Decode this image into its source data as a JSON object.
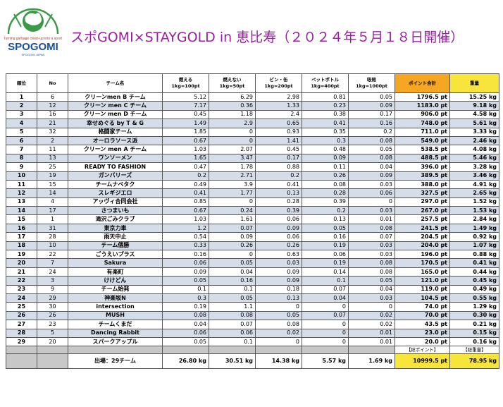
{
  "logo": {
    "tagline": "Turning garbage clean-up into a sport!",
    "wordmark": "SPOGOMI",
    "subtext": "SPOGOMI JAPAN"
  },
  "title": "スポGOMI×STAYGOLD in 恵比寿（２０２４年５月１８日開催）",
  "table": {
    "headers": {
      "rank": "順位",
      "no": "No",
      "team": "チーム名",
      "burnable": "燃える\n1kg=100pt",
      "nonburnable": "燃えない\n1kg=50pt",
      "cans": "ビン・缶\n1kg=200pt",
      "pet": "ペットボトル\n1kg=400pt",
      "cigs": "吸殻\n1kg=1000pt",
      "points": "ポイント合計",
      "weight": "重量"
    },
    "rows": [
      {
        "rank": "1",
        "no": "6",
        "team": "クリーンmen B チーム",
        "burnable": "5.12",
        "nonburnable": "6.29",
        "cans": "2.98",
        "pet": "0.81",
        "cigs": "0.05",
        "points": "1796.5 pt",
        "weight": "15.25 kg"
      },
      {
        "rank": "2",
        "no": "12",
        "team": "クリーン men C チーム",
        "burnable": "7.17",
        "nonburnable": "0.36",
        "cans": "1.33",
        "pet": "0.23",
        "cigs": "0.09",
        "points": "1183.0 pt",
        "weight": "9.18 kg"
      },
      {
        "rank": "3",
        "no": "16",
        "team": "クリーン men D チーム",
        "burnable": "0.45",
        "nonburnable": "1.18",
        "cans": "2.4",
        "pet": "0.38",
        "cigs": "0.17",
        "points": "906.0 pt",
        "weight": "4.58 kg"
      },
      {
        "rank": "4",
        "no": "21",
        "team": "幸せめぐる by T & G",
        "burnable": "1.49",
        "nonburnable": "2.9",
        "cans": "0.65",
        "pet": "0.41",
        "cigs": "0.16",
        "points": "748.0 pt",
        "weight": "5.61 kg"
      },
      {
        "rank": "5",
        "no": "32",
        "team": "格闘家チーム",
        "burnable": "1.85",
        "nonburnable": "0",
        "cans": "0.93",
        "pet": "0.35",
        "cigs": "0.2",
        "points": "711.0 pt",
        "weight": "3.33 kg"
      },
      {
        "rank": "6",
        "no": "2",
        "team": "オーロラソース派",
        "burnable": "0.67",
        "nonburnable": "0",
        "cans": "1.41",
        "pet": "0.3",
        "cigs": "0.08",
        "points": "549.0 pt",
        "weight": "2.46 kg"
      },
      {
        "rank": "7",
        "no": "11",
        "team": "クリーン men A チーム",
        "burnable": "1.03",
        "nonburnable": "2.07",
        "cans": "0.45",
        "pet": "0.48",
        "cigs": "0.05",
        "points": "538.5 pt",
        "weight": "4.08 kg"
      },
      {
        "rank": "8",
        "no": "13",
        "team": "ワンソーメン",
        "burnable": "1.65",
        "nonburnable": "3.47",
        "cans": "0.17",
        "pet": "0.09",
        "cigs": "0.08",
        "points": "488.5 pt",
        "weight": "5.46 kg"
      },
      {
        "rank": "9",
        "no": "25",
        "team": "READY TO FASHION",
        "burnable": "0.47",
        "nonburnable": "1.78",
        "cans": "0.88",
        "pet": "0.11",
        "cigs": "0.04",
        "points": "396.0 pt",
        "weight": "3.28 kg"
      },
      {
        "rank": "10",
        "no": "19",
        "team": "ガンバリーズ",
        "burnable": "0.2",
        "nonburnable": "2.71",
        "cans": "0.2",
        "pet": "0.26",
        "cigs": "0.09",
        "points": "389.5 pt",
        "weight": "3.46 kg"
      },
      {
        "rank": "11",
        "no": "15",
        "team": "チームナベタク",
        "burnable": "0.49",
        "nonburnable": "3.9",
        "cans": "0.41",
        "pet": "0.08",
        "cigs": "0.03",
        "points": "388.0 pt",
        "weight": "4.91 kg"
      },
      {
        "rank": "12",
        "no": "14",
        "team": "スレギジエロ",
        "burnable": "0.41",
        "nonburnable": "1.77",
        "cans": "0.13",
        "pet": "0.28",
        "cigs": "0.06",
        "points": "327.5 pt",
        "weight": "2.65 kg"
      },
      {
        "rank": "13",
        "no": "4",
        "team": "アッヴィ合同会社",
        "burnable": "0.85",
        "nonburnable": "0",
        "cans": "0.28",
        "pet": "0.39",
        "cigs": "0",
        "points": "297.0 pt",
        "weight": "1.52 kg"
      },
      {
        "rank": "14",
        "no": "17",
        "team": "さつまいも",
        "burnable": "0.67",
        "nonburnable": "0.24",
        "cans": "0.39",
        "pet": "0.2",
        "cigs": "0.03",
        "points": "267.0 pt",
        "weight": "1.53 kg"
      },
      {
        "rank": "15",
        "no": "1",
        "team": "滝沢ごみクラブ",
        "burnable": "1.03",
        "nonburnable": "1.61",
        "cans": "0.06",
        "pet": "0.13",
        "cigs": "0.01",
        "points": "257.5 pt",
        "weight": "2.84 kg"
      },
      {
        "rank": "16",
        "no": "31",
        "team": "東京力車",
        "burnable": "1.2",
        "nonburnable": "0.07",
        "cans": "0.09",
        "pet": "0.05",
        "cigs": "0.08",
        "points": "241.5 pt",
        "weight": "1.49 kg"
      },
      {
        "rank": "17",
        "no": "28",
        "team": "雨天中止",
        "burnable": "0.54",
        "nonburnable": "0.09",
        "cans": "0.06",
        "pet": "0.16",
        "cigs": "0.07",
        "points": "204.5 pt",
        "weight": "0.92 kg"
      },
      {
        "rank": "18",
        "no": "10",
        "team": "チーム個勝",
        "burnable": "0.33",
        "nonburnable": "0.26",
        "cans": "0.26",
        "pet": "0.19",
        "cigs": "0.03",
        "points": "204.0 pt",
        "weight": "1.07 kg"
      },
      {
        "rank": "19",
        "no": "22",
        "team": "ごうえいプラス",
        "burnable": "0.16",
        "nonburnable": "0",
        "cans": "0.63",
        "pet": "0.06",
        "cigs": "0.03",
        "points": "196.0 pt",
        "weight": "0.88 kg"
      },
      {
        "rank": "20",
        "no": "7",
        "team": "Sakura",
        "burnable": "0.06",
        "nonburnable": "0.05",
        "cans": "0.03",
        "pet": "0.19",
        "cigs": "0.08",
        "points": "170.5 pt",
        "weight": "0.41 kg"
      },
      {
        "rank": "21",
        "no": "24",
        "team": "有楽町",
        "burnable": "0.09",
        "nonburnable": "0.04",
        "cans": "0.09",
        "pet": "0.14",
        "cigs": "0.08",
        "points": "165.0 pt",
        "weight": "0.44 kg"
      },
      {
        "rank": "22",
        "no": "3",
        "team": "けけどん",
        "burnable": "0.05",
        "nonburnable": "0.16",
        "cans": "0.09",
        "pet": "0.1",
        "cigs": "0.05",
        "points": "121.0 pt",
        "weight": "0.45 kg"
      },
      {
        "rank": "23",
        "no": "9",
        "team": "チーム始発",
        "burnable": "0.1",
        "nonburnable": "0.1",
        "cans": "0.18",
        "pet": "0.07",
        "cigs": "0.04",
        "points": "119.0 pt",
        "weight": "0.49 kg"
      },
      {
        "rank": "24",
        "no": "29",
        "team": "神楽坂N",
        "burnable": "0.3",
        "nonburnable": "0.05",
        "cans": "0.13",
        "pet": "0.04",
        "cigs": "0.03",
        "points": "104.5 pt",
        "weight": "0.55 kg"
      },
      {
        "rank": "25",
        "no": "30",
        "team": "intersection",
        "burnable": "0.19",
        "nonburnable": "1.1",
        "cans": "0",
        "pet": "0",
        "cigs": "0",
        "points": "74.0 pt",
        "weight": "1.29 kg"
      },
      {
        "rank": "26",
        "no": "26",
        "team": "MUSH",
        "burnable": "0.08",
        "nonburnable": "0.08",
        "cans": "0.05",
        "pet": "0.07",
        "cigs": "0.02",
        "points": "70.0 pt",
        "weight": "0.30 kg"
      },
      {
        "rank": "27",
        "no": "23",
        "team": "チームくまだ",
        "burnable": "0.04",
        "nonburnable": "0.07",
        "cans": "0.08",
        "pet": "0",
        "cigs": "0.02",
        "points": "43.5 pt",
        "weight": "0.21 kg"
      },
      {
        "rank": "28",
        "no": "5",
        "team": "Dancing Rabbit",
        "burnable": "0.06",
        "nonburnable": "0.06",
        "cans": "0.02",
        "pet": "0",
        "cigs": "0.01",
        "points": "23.0 pt",
        "weight": "0.15 kg"
      },
      {
        "rank": "29",
        "no": "20",
        "team": "スパークアップル",
        "burnable": "0.05",
        "nonburnable": "0.1",
        "cans": "0",
        "pet": "0",
        "cigs": "0.01",
        "points": "20.0 pt",
        "weight": "0.16 kg"
      }
    ],
    "note_points": "【総ポイント】",
    "note_weight": "【総重量】",
    "totals": {
      "label": "出場：29チーム",
      "burnable": "26.80 kg",
      "nonburnable": "30.51 kg",
      "cans": "14.38 kg",
      "pet": "5.57 kg",
      "cigs": "1.69 kg",
      "points": "10999.5 pt",
      "weight": "78.95 kg"
    }
  },
  "colors": {
    "title": "#9a1fa0",
    "row_alt": "#d5dde8",
    "points_header": "#f5a623",
    "weight_header": "#f7e53b",
    "logo_green": "#3a9a48",
    "logo_blue": "#1d4f9c"
  }
}
